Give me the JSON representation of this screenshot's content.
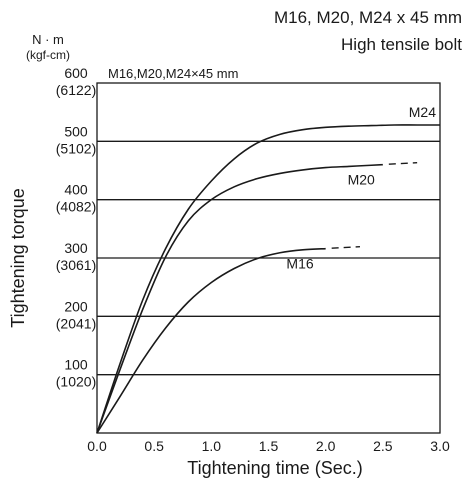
{
  "chart_data": {
    "type": "line",
    "title": "M16, M20, M24 x 45 mm",
    "subtitle": "High tensile bolt",
    "inner_title": "M16,M20,M24×45 mm",
    "xlabel": "Tightening time (Sec.)",
    "ylabel": "Tightening torque",
    "y_unit_primary": "N · m",
    "y_unit_secondary": "(kgf-cm)",
    "xlim": [
      0,
      3.0
    ],
    "ylim": [
      0,
      600
    ],
    "x_ticks": [
      {
        "value": 0,
        "label": "0.0"
      },
      {
        "value": 0.5,
        "label": "0.5"
      },
      {
        "value": 1.0,
        "label": "1.0"
      },
      {
        "value": 1.5,
        "label": "1.5"
      },
      {
        "value": 2.0,
        "label": "2.0"
      },
      {
        "value": 2.5,
        "label": "2.5"
      },
      {
        "value": 3.0,
        "label": "3.0"
      }
    ],
    "y_ticks": [
      {
        "value": 100,
        "label": "100",
        "sub": "(1020)"
      },
      {
        "value": 200,
        "label": "200",
        "sub": "(2041)"
      },
      {
        "value": 300,
        "label": "300",
        "sub": "(3061)"
      },
      {
        "value": 400,
        "label": "400",
        "sub": "(4082)"
      },
      {
        "value": 500,
        "label": "500",
        "sub": "(5102)"
      },
      {
        "value": 600,
        "label": "600",
        "sub": "(6122)"
      }
    ],
    "grid": "horizontal",
    "series": [
      {
        "name": "M24",
        "x": [
          0,
          0.2,
          0.4,
          0.6,
          0.8,
          1.0,
          1.2,
          1.4,
          1.6,
          1.8,
          2.0,
          2.2,
          2.4,
          2.6,
          2.8,
          3.0
        ],
        "y": [
          0,
          118,
          228,
          316,
          384,
          432,
          470,
          497,
          512,
          520,
          524,
          526,
          527,
          528,
          528,
          528
        ],
        "dashed_until": null
      },
      {
        "name": "M20",
        "x": [
          0,
          0.2,
          0.4,
          0.6,
          0.8,
          1.0,
          1.2,
          1.4,
          1.6,
          1.8,
          2.0,
          2.2,
          2.4,
          2.5
        ],
        "y": [
          0,
          108,
          212,
          302,
          364,
          400,
          422,
          436,
          445,
          451,
          455,
          457,
          459,
          460
        ],
        "dashed_until": 2.8
      },
      {
        "name": "M16",
        "x": [
          0,
          0.2,
          0.4,
          0.6,
          0.8,
          1.0,
          1.2,
          1.4,
          1.6,
          1.8,
          2.0
        ],
        "y": [
          0,
          62,
          125,
          180,
          225,
          258,
          282,
          299,
          309,
          314,
          316
        ],
        "dashed_until": 2.3
      }
    ]
  }
}
